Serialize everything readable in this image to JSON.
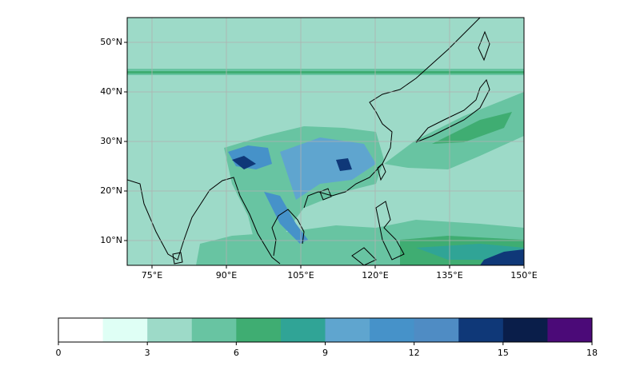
{
  "chart_data": {
    "type": "contour_map",
    "xlim": [
      70,
      150
    ],
    "ylim": [
      5,
      55
    ],
    "xticks": [
      {
        "value": 75,
        "label": "75°E"
      },
      {
        "value": 90,
        "label": "90°E"
      },
      {
        "value": 105,
        "label": "105°E"
      },
      {
        "value": 120,
        "label": "120°E"
      },
      {
        "value": 135,
        "label": "135°E"
      },
      {
        "value": 150,
        "label": "150°E"
      }
    ],
    "yticks": [
      {
        "value": 10,
        "label": "10°N"
      },
      {
        "value": 20,
        "label": "20°N"
      },
      {
        "value": 30,
        "label": "30°N"
      },
      {
        "value": 40,
        "label": "40°N"
      },
      {
        "value": 50,
        "label": "50°N"
      }
    ],
    "grid": true,
    "colorbar": {
      "lim": [
        0,
        18
      ],
      "ticks": [
        0,
        3,
        6,
        9,
        12,
        15,
        18
      ],
      "colors": [
        "#ffffff",
        "#dffff5",
        "#9ddac8",
        "#68c4a2",
        "#3fad72",
        "#30a496",
        "#5fa5cf",
        "#4692c9",
        "#4f8cc4",
        "#0f3878",
        "#0a1e4a",
        "#4b0a78"
      ]
    }
  }
}
